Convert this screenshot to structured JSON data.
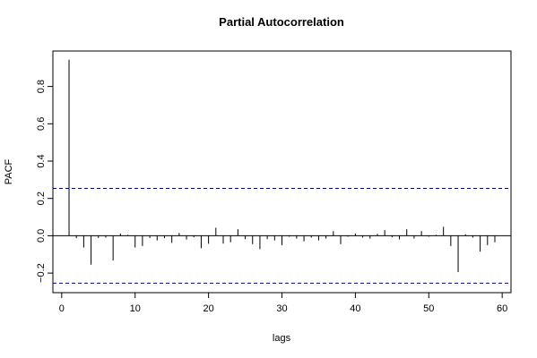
{
  "chart_data": {
    "type": "bar",
    "title": "Partial Autocorrelation",
    "xlabel": "lags",
    "ylabel": "PACF",
    "xlim": [
      -1.2,
      61.2
    ],
    "ylim": [
      -0.305,
      0.99
    ],
    "xticks": [
      0,
      10,
      20,
      30,
      40,
      50,
      60
    ],
    "yticks": [
      -0.2,
      0.0,
      0.2,
      0.4,
      0.6,
      0.8
    ],
    "ytick_labels": [
      "−0.2",
      "0.0",
      "0.2",
      "0.4",
      "0.6",
      "0.8"
    ],
    "confidence_bounds": [
      0.254,
      -0.254
    ],
    "confidence_line_color": "#00008b",
    "bar_color": "#000000",
    "grid": false,
    "lags": [
      1,
      2,
      3,
      4,
      5,
      6,
      7,
      8,
      9,
      10,
      11,
      12,
      13,
      14,
      15,
      16,
      17,
      18,
      19,
      20,
      21,
      22,
      23,
      24,
      25,
      26,
      27,
      28,
      29,
      30,
      31,
      32,
      33,
      34,
      35,
      36,
      37,
      38,
      39,
      40,
      41,
      42,
      43,
      44,
      45,
      46,
      47,
      48,
      49,
      50,
      51,
      52,
      53,
      54,
      55,
      56,
      57,
      58,
      59
    ],
    "values": [
      0.943,
      -0.013,
      -0.063,
      -0.155,
      -0.012,
      -0.01,
      -0.132,
      0.012,
      0.005,
      -0.063,
      -0.055,
      -0.012,
      -0.025,
      -0.013,
      -0.038,
      0.015,
      -0.02,
      -0.008,
      -0.067,
      -0.043,
      0.043,
      -0.042,
      -0.035,
      0.035,
      -0.018,
      -0.045,
      -0.072,
      -0.018,
      -0.025,
      -0.05,
      -0.005,
      -0.015,
      -0.03,
      -0.01,
      -0.025,
      -0.015,
      0.025,
      -0.045,
      -0.005,
      0.012,
      -0.01,
      -0.015,
      0.01,
      0.03,
      -0.008,
      -0.02,
      0.035,
      -0.015,
      0.025,
      -0.005,
      0.005,
      0.048,
      -0.055,
      -0.195,
      0.008,
      -0.01,
      -0.085,
      -0.05,
      -0.035
    ]
  }
}
